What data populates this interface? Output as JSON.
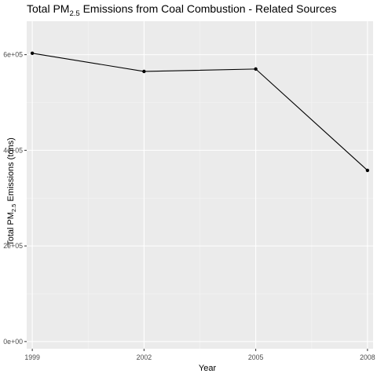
{
  "chart_data": {
    "type": "line",
    "title": {
      "prefix": "Total PM",
      "subscript": "2.5",
      "suffix": " Emissions from Coal Combustion - Related Sources"
    },
    "xlabel": "Year",
    "ylabel": {
      "prefix": "Total PM",
      "subscript": "2.5",
      "suffix": " Emissions (tons)"
    },
    "x": [
      1999,
      2002,
      2005,
      2008
    ],
    "series": [
      {
        "values": [
          603000,
          565000,
          570000,
          358000
        ]
      }
    ],
    "xlim": [
      1998.85,
      2008.15
    ],
    "ylim": [
      -15000,
      670000
    ],
    "x_ticks": [
      1999,
      2002,
      2005,
      2008
    ],
    "x_tick_labels": [
      "1999",
      "2002",
      "2005",
      "2008"
    ],
    "y_ticks": [
      0,
      200000,
      400000,
      600000
    ],
    "y_tick_labels": [
      "0e+00",
      "2e+05",
      "4e+05",
      "6e+05"
    ],
    "grid": true,
    "colors": {
      "panel_background": "#EBEBEB",
      "grid_major": "#FFFFFF",
      "grid_minor": "#F5F5F5",
      "line": "#000000",
      "points": "#000000",
      "tick_text": "#4D4D4D",
      "tick_marks": "#333333"
    }
  }
}
